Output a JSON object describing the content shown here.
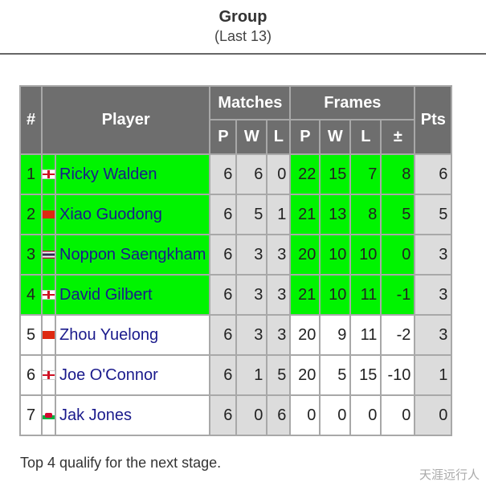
{
  "header": {
    "title": "Group",
    "subtitle": "(Last 13)"
  },
  "table": {
    "columns": {
      "pos": "#",
      "player": "Player",
      "matches": "Matches",
      "frames": "Frames",
      "pts": "Pts",
      "mp": "P",
      "mw": "W",
      "ml": "L",
      "fp": "P",
      "fw": "W",
      "fl": "L",
      "fd": "±"
    },
    "rows": [
      {
        "pos": "1",
        "flag": "england",
        "name": "Ricky Walden",
        "mp": "6",
        "mw": "6",
        "ml": "0",
        "fp": "22",
        "fw": "15",
        "fl": "7",
        "fd": "8",
        "pts": "6",
        "qualified": true
      },
      {
        "pos": "2",
        "flag": "china",
        "name": "Xiao Guodong",
        "mp": "6",
        "mw": "5",
        "ml": "1",
        "fp": "21",
        "fw": "13",
        "fl": "8",
        "fd": "5",
        "pts": "5",
        "qualified": true
      },
      {
        "pos": "3",
        "flag": "thailand",
        "name": "Noppon Saengkham",
        "mp": "6",
        "mw": "3",
        "ml": "3",
        "fp": "20",
        "fw": "10",
        "fl": "10",
        "fd": "0",
        "pts": "3",
        "qualified": true
      },
      {
        "pos": "4",
        "flag": "england",
        "name": "David Gilbert",
        "mp": "6",
        "mw": "3",
        "ml": "3",
        "fp": "21",
        "fw": "10",
        "fl": "11",
        "fd": "-1",
        "pts": "3",
        "qualified": true
      },
      {
        "pos": "5",
        "flag": "china",
        "name": "Zhou Yuelong",
        "mp": "6",
        "mw": "3",
        "ml": "3",
        "fp": "20",
        "fw": "9",
        "fl": "11",
        "fd": "-2",
        "pts": "3",
        "qualified": false
      },
      {
        "pos": "6",
        "flag": "england",
        "name": "Joe O'Connor",
        "mp": "6",
        "mw": "1",
        "ml": "5",
        "fp": "20",
        "fw": "5",
        "fl": "15",
        "fd": "-10",
        "pts": "1",
        "qualified": false
      },
      {
        "pos": "7",
        "flag": "wales",
        "name": "Jak Jones",
        "mp": "6",
        "mw": "0",
        "ml": "6",
        "fp": "0",
        "fw": "0",
        "fl": "0",
        "fd": "0",
        "pts": "0",
        "qualified": false
      }
    ]
  },
  "footnote": "Top 4 qualify for the next stage.",
  "watermark": "天涯远行人",
  "colors": {
    "qualified": "#00f400",
    "header": "#6e6e6e",
    "link": "#1a1a8c"
  }
}
